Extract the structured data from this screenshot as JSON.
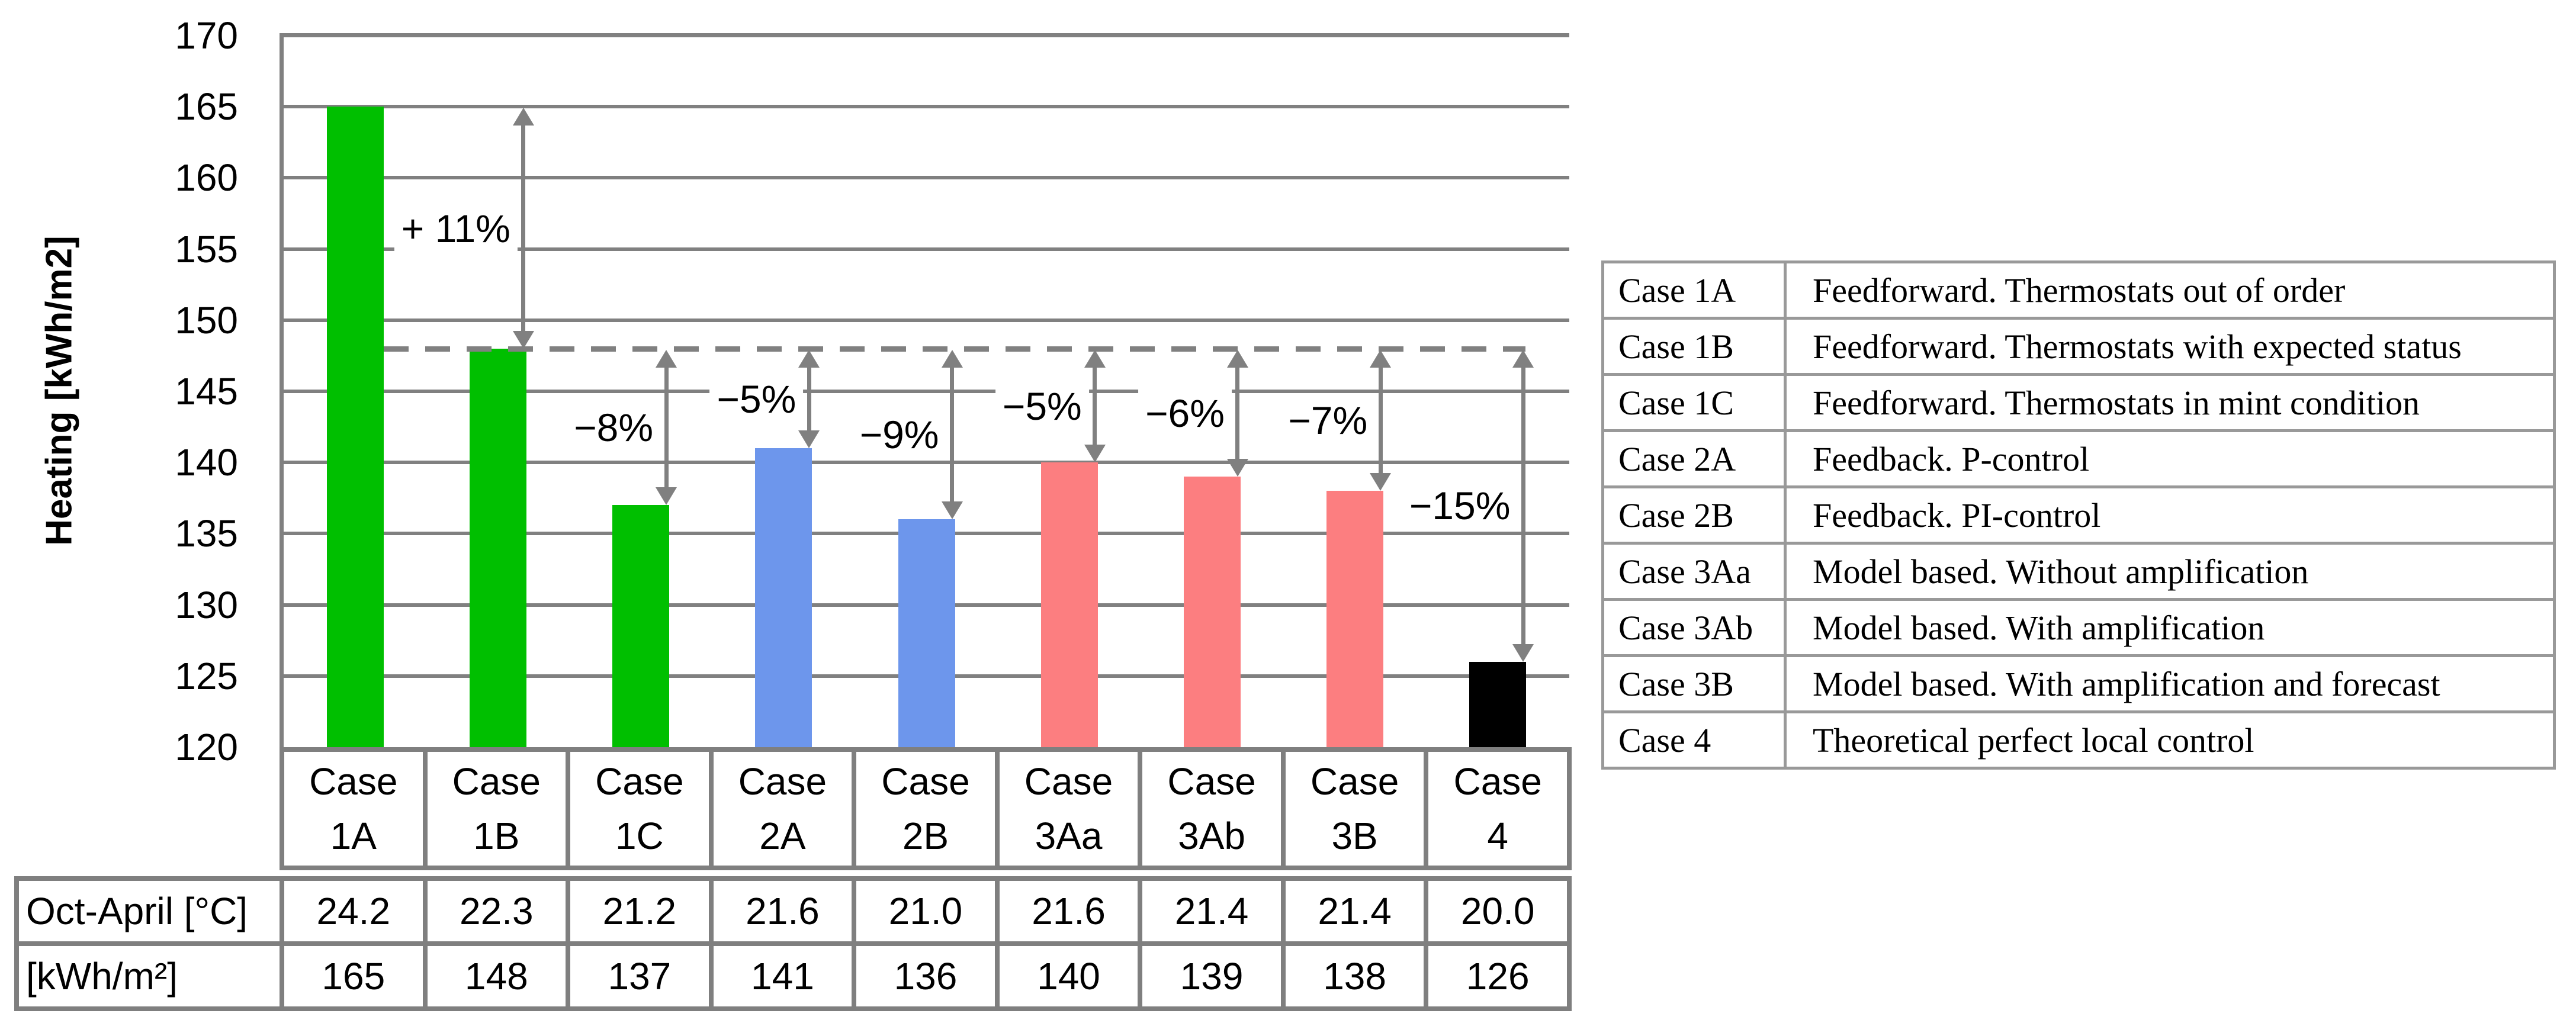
{
  "chart_data": {
    "type": "bar",
    "title": "",
    "xlabel": "",
    "ylabel": "Heating [kWh/m2]",
    "ylim": [
      120,
      170
    ],
    "ytick_step": 5,
    "yticks": [
      170,
      165,
      160,
      155,
      150,
      145,
      140,
      135,
      130,
      125,
      120
    ],
    "grid": true,
    "legend_position": "none",
    "categories": [
      [
        "Case",
        "1A"
      ],
      [
        "Case",
        "1B"
      ],
      [
        "Case",
        "1C"
      ],
      [
        "Case",
        "2A"
      ],
      [
        "Case",
        "2B"
      ],
      [
        "Case",
        "3Aa"
      ],
      [
        "Case",
        "3Ab"
      ],
      [
        "Case",
        "3B"
      ],
      [
        "Case",
        "4"
      ]
    ],
    "series": [
      {
        "name": "Heating",
        "values": [
          165,
          148,
          137,
          141,
          136,
          140,
          139,
          138,
          126
        ]
      }
    ],
    "bar_colors": [
      "#00BF00",
      "#00BF00",
      "#00BF00",
      "#6D96EC",
      "#6D96EC",
      "#FC7E80",
      "#FC7E80",
      "#FC7E80",
      "#000000"
    ],
    "baseline": {
      "value": 148,
      "style": "dashed",
      "color": "#808080"
    },
    "annotations": [
      {
        "label": "+ 11%",
        "bar": 1,
        "from": 165,
        "to": 148
      },
      {
        "label": "−8%",
        "bar": 2,
        "from": 148,
        "to": 137
      },
      {
        "label": "−5%",
        "bar": 3,
        "from": 148,
        "to": 141
      },
      {
        "label": "−9%",
        "bar": 4,
        "from": 148,
        "to": 136
      },
      {
        "label": "−5%",
        "bar": 5,
        "from": 148,
        "to": 140
      },
      {
        "label": "−6%",
        "bar": 6,
        "from": 148,
        "to": 139
      },
      {
        "label": "−7%",
        "bar": 7,
        "from": 148,
        "to": 138
      },
      {
        "label": "−15%",
        "bar": 8,
        "from": 148,
        "to": 126
      }
    ]
  },
  "bottom_table": {
    "rows": [
      {
        "header": "Oct-April [°C]",
        "values": [
          "24.2",
          "22.3",
          "21.2",
          "21.6",
          "21.0",
          "21.6",
          "21.4",
          "21.4",
          "20.0"
        ]
      },
      {
        "header": "[kWh/m²]",
        "values": [
          "165",
          "148",
          "137",
          "141",
          "136",
          "140",
          "139",
          "138",
          "126"
        ]
      }
    ]
  },
  "legend_table": {
    "rows": [
      {
        "case": "Case 1A",
        "description": "Feedforward. Thermostats out of order"
      },
      {
        "case": "Case 1B",
        "description": "Feedforward. Thermostats with expected status"
      },
      {
        "case": "Case 1C",
        "description": "Feedforward. Thermostats in mint condition"
      },
      {
        "case": "Case 2A",
        "description": "Feedback. P-control"
      },
      {
        "case": "Case 2B",
        "description": "Feedback. PI-control"
      },
      {
        "case": "Case 3Aa",
        "description": "Model based. Without amplification"
      },
      {
        "case": "Case 3Ab",
        "description": "Model based. With amplification"
      },
      {
        "case": "Case 3B",
        "description": "Model based. With amplification and forecast"
      },
      {
        "case": "Case 4",
        "description": "Theoretical perfect local control"
      }
    ]
  },
  "colors": {
    "green": "#00BF00",
    "blue": "#6D96EC",
    "pink": "#FC7E80",
    "black": "#000000",
    "grid": "#808080",
    "arrow": "#808080",
    "table_border": "#7F7F7F",
    "legend_border": "#999999"
  }
}
